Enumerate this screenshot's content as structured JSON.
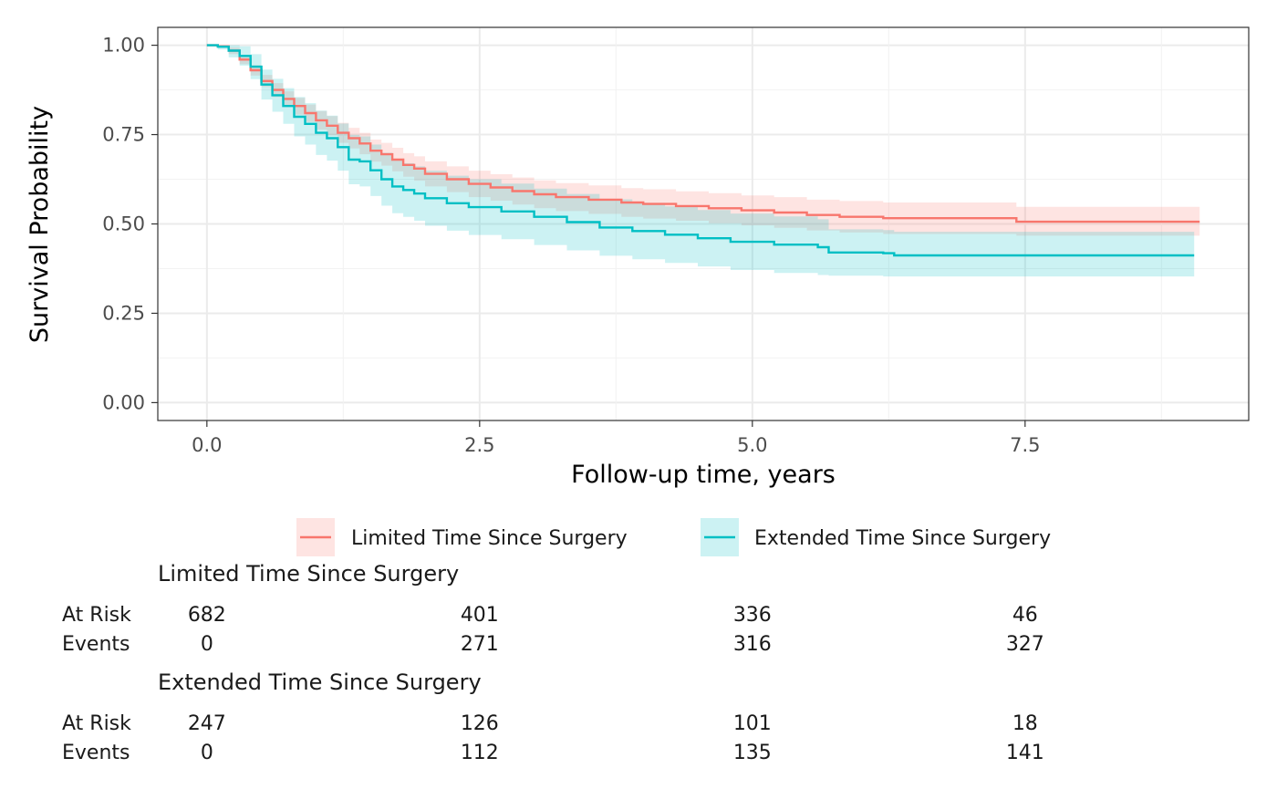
{
  "chart_data": {
    "type": "line",
    "subtype": "kaplan-meier",
    "xlabel": "Follow-up time, years",
    "ylabel": "Survival Probability",
    "xlim": [
      -0.45,
      9.55
    ],
    "ylim": [
      -0.05,
      1.05
    ],
    "x_ticks": [
      0.0,
      2.5,
      5.0,
      7.5
    ],
    "x_tick_labels": [
      "0.0",
      "2.5",
      "5.0",
      "7.5"
    ],
    "y_ticks": [
      0.0,
      0.25,
      0.5,
      0.75,
      1.0
    ],
    "y_tick_labels": [
      "0.00",
      "0.25",
      "0.50",
      "0.75",
      "1.00"
    ],
    "grid": true,
    "legend_position": "bottom",
    "series": [
      {
        "name": "Limited Time Since Surgery",
        "color": "#F8766D",
        "band_color": "#F8766D",
        "points": [
          [
            0,
            1.0
          ],
          [
            0.1,
            0.997
          ],
          [
            0.2,
            0.985
          ],
          [
            0.3,
            0.96
          ],
          [
            0.4,
            0.93
          ],
          [
            0.5,
            0.9
          ],
          [
            0.6,
            0.875
          ],
          [
            0.7,
            0.85
          ],
          [
            0.8,
            0.83
          ],
          [
            0.9,
            0.81
          ],
          [
            1.0,
            0.79
          ],
          [
            1.1,
            0.775
          ],
          [
            1.2,
            0.755
          ],
          [
            1.3,
            0.74
          ],
          [
            1.4,
            0.725
          ],
          [
            1.5,
            0.705
          ],
          [
            1.6,
            0.695
          ],
          [
            1.7,
            0.68
          ],
          [
            1.8,
            0.665
          ],
          [
            1.9,
            0.655
          ],
          [
            2.0,
            0.64
          ],
          [
            2.2,
            0.625
          ],
          [
            2.4,
            0.612
          ],
          [
            2.6,
            0.602
          ],
          [
            2.8,
            0.592
          ],
          [
            3.0,
            0.583
          ],
          [
            3.2,
            0.575
          ],
          [
            3.5,
            0.568
          ],
          [
            3.8,
            0.56
          ],
          [
            4.0,
            0.556
          ],
          [
            4.3,
            0.55
          ],
          [
            4.6,
            0.544
          ],
          [
            4.9,
            0.538
          ],
          [
            5.2,
            0.532
          ],
          [
            5.5,
            0.525
          ],
          [
            5.8,
            0.52
          ],
          [
            6.2,
            0.516
          ],
          [
            6.8,
            0.516
          ],
          [
            7.4,
            0.516
          ],
          [
            7.42,
            0.506
          ],
          [
            9.1,
            0.506
          ]
        ],
        "lower": [
          [
            0,
            1.0
          ],
          [
            0.1,
            0.993
          ],
          [
            0.2,
            0.975
          ],
          [
            0.3,
            0.947
          ],
          [
            0.4,
            0.915
          ],
          [
            0.5,
            0.883
          ],
          [
            0.6,
            0.855
          ],
          [
            0.7,
            0.828
          ],
          [
            0.8,
            0.806
          ],
          [
            0.9,
            0.785
          ],
          [
            1.0,
            0.764
          ],
          [
            1.1,
            0.748
          ],
          [
            1.2,
            0.727
          ],
          [
            1.3,
            0.711
          ],
          [
            1.4,
            0.695
          ],
          [
            1.5,
            0.674
          ],
          [
            1.6,
            0.663
          ],
          [
            1.7,
            0.647
          ],
          [
            1.8,
            0.632
          ],
          [
            1.9,
            0.621
          ],
          [
            2.0,
            0.605
          ],
          [
            2.2,
            0.589
          ],
          [
            2.4,
            0.575
          ],
          [
            2.6,
            0.565
          ],
          [
            2.8,
            0.554
          ],
          [
            3.0,
            0.544
          ],
          [
            3.2,
            0.536
          ],
          [
            3.5,
            0.528
          ],
          [
            3.8,
            0.52
          ],
          [
            4.0,
            0.515
          ],
          [
            4.3,
            0.509
          ],
          [
            4.6,
            0.502
          ],
          [
            4.9,
            0.496
          ],
          [
            5.2,
            0.489
          ],
          [
            5.5,
            0.482
          ],
          [
            5.8,
            0.476
          ],
          [
            6.2,
            0.472
          ],
          [
            6.8,
            0.472
          ],
          [
            7.4,
            0.472
          ],
          [
            7.42,
            0.467
          ],
          [
            9.1,
            0.467
          ]
        ],
        "upper": [
          [
            0,
            1.0
          ],
          [
            0.1,
            1.0
          ],
          [
            0.2,
            0.994
          ],
          [
            0.3,
            0.972
          ],
          [
            0.4,
            0.944
          ],
          [
            0.5,
            0.917
          ],
          [
            0.6,
            0.894
          ],
          [
            0.7,
            0.871
          ],
          [
            0.8,
            0.853
          ],
          [
            0.9,
            0.834
          ],
          [
            1.0,
            0.816
          ],
          [
            1.1,
            0.802
          ],
          [
            1.2,
            0.783
          ],
          [
            1.3,
            0.769
          ],
          [
            1.4,
            0.755
          ],
          [
            1.5,
            0.736
          ],
          [
            1.6,
            0.727
          ],
          [
            1.7,
            0.713
          ],
          [
            1.8,
            0.698
          ],
          [
            1.9,
            0.689
          ],
          [
            2.0,
            0.675
          ],
          [
            2.2,
            0.661
          ],
          [
            2.4,
            0.649
          ],
          [
            2.6,
            0.639
          ],
          [
            2.8,
            0.63
          ],
          [
            3.0,
            0.622
          ],
          [
            3.2,
            0.614
          ],
          [
            3.5,
            0.608
          ],
          [
            3.8,
            0.6
          ],
          [
            4.0,
            0.597
          ],
          [
            4.3,
            0.591
          ],
          [
            4.6,
            0.586
          ],
          [
            4.9,
            0.58
          ],
          [
            5.2,
            0.575
          ],
          [
            5.5,
            0.568
          ],
          [
            5.8,
            0.564
          ],
          [
            6.2,
            0.56
          ],
          [
            6.8,
            0.56
          ],
          [
            7.4,
            0.56
          ],
          [
            7.42,
            0.548
          ],
          [
            9.1,
            0.548
          ]
        ]
      },
      {
        "name": "Extended Time Since Surgery",
        "color": "#00BFC4",
        "band_color": "#00BFC4",
        "points": [
          [
            0,
            1.0
          ],
          [
            0.1,
            0.996
          ],
          [
            0.2,
            0.985
          ],
          [
            0.3,
            0.97
          ],
          [
            0.4,
            0.94
          ],
          [
            0.5,
            0.89
          ],
          [
            0.6,
            0.86
          ],
          [
            0.7,
            0.83
          ],
          [
            0.8,
            0.8
          ],
          [
            0.9,
            0.78
          ],
          [
            1.0,
            0.755
          ],
          [
            1.1,
            0.74
          ],
          [
            1.2,
            0.715
          ],
          [
            1.3,
            0.68
          ],
          [
            1.4,
            0.675
          ],
          [
            1.5,
            0.65
          ],
          [
            1.6,
            0.625
          ],
          [
            1.7,
            0.605
          ],
          [
            1.8,
            0.595
          ],
          [
            1.9,
            0.585
          ],
          [
            2.0,
            0.572
          ],
          [
            2.2,
            0.558
          ],
          [
            2.4,
            0.547
          ],
          [
            2.7,
            0.535
          ],
          [
            3.0,
            0.52
          ],
          [
            3.3,
            0.505
          ],
          [
            3.6,
            0.49
          ],
          [
            3.9,
            0.48
          ],
          [
            4.2,
            0.47
          ],
          [
            4.5,
            0.46
          ],
          [
            4.8,
            0.45
          ],
          [
            5.2,
            0.442
          ],
          [
            5.6,
            0.435
          ],
          [
            5.7,
            0.42
          ],
          [
            6.2,
            0.418
          ],
          [
            6.3,
            0.412
          ],
          [
            9.05,
            0.412
          ]
        ],
        "lower": [
          [
            0,
            1.0
          ],
          [
            0.1,
            0.988
          ],
          [
            0.2,
            0.966
          ],
          [
            0.3,
            0.943
          ],
          [
            0.4,
            0.905
          ],
          [
            0.5,
            0.848
          ],
          [
            0.6,
            0.814
          ],
          [
            0.7,
            0.78
          ],
          [
            0.8,
            0.745
          ],
          [
            0.9,
            0.722
          ],
          [
            1.0,
            0.693
          ],
          [
            1.1,
            0.677
          ],
          [
            1.2,
            0.649
          ],
          [
            1.3,
            0.611
          ],
          [
            1.4,
            0.605
          ],
          [
            1.5,
            0.578
          ],
          [
            1.6,
            0.551
          ],
          [
            1.7,
            0.53
          ],
          [
            1.8,
            0.52
          ],
          [
            1.9,
            0.509
          ],
          [
            2.0,
            0.495
          ],
          [
            2.2,
            0.481
          ],
          [
            2.4,
            0.469
          ],
          [
            2.7,
            0.457
          ],
          [
            3.0,
            0.441
          ],
          [
            3.3,
            0.426
          ],
          [
            3.6,
            0.411
          ],
          [
            3.9,
            0.401
          ],
          [
            4.2,
            0.391
          ],
          [
            4.5,
            0.381
          ],
          [
            4.8,
            0.371
          ],
          [
            5.2,
            0.363
          ],
          [
            5.6,
            0.357
          ],
          [
            5.7,
            0.355
          ],
          [
            6.2,
            0.353
          ],
          [
            6.3,
            0.353
          ],
          [
            9.05,
            0.353
          ]
        ],
        "upper": [
          [
            0,
            1.0
          ],
          [
            0.1,
            1.0
          ],
          [
            0.2,
            1.0
          ],
          [
            0.3,
            0.997
          ],
          [
            0.4,
            0.975
          ],
          [
            0.5,
            0.932
          ],
          [
            0.6,
            0.906
          ],
          [
            0.7,
            0.88
          ],
          [
            0.8,
            0.855
          ],
          [
            0.9,
            0.838
          ],
          [
            1.0,
            0.817
          ],
          [
            1.1,
            0.803
          ],
          [
            1.2,
            0.781
          ],
          [
            1.3,
            0.749
          ],
          [
            1.4,
            0.745
          ],
          [
            1.5,
            0.722
          ],
          [
            1.6,
            0.699
          ],
          [
            1.7,
            0.68
          ],
          [
            1.8,
            0.67
          ],
          [
            1.9,
            0.661
          ],
          [
            2.0,
            0.649
          ],
          [
            2.2,
            0.635
          ],
          [
            2.4,
            0.625
          ],
          [
            2.7,
            0.613
          ],
          [
            3.0,
            0.599
          ],
          [
            3.3,
            0.584
          ],
          [
            3.6,
            0.569
          ],
          [
            3.9,
            0.559
          ],
          [
            4.2,
            0.549
          ],
          [
            4.5,
            0.539
          ],
          [
            4.8,
            0.529
          ],
          [
            5.2,
            0.521
          ],
          [
            5.6,
            0.513
          ],
          [
            5.7,
            0.485
          ],
          [
            6.2,
            0.483
          ],
          [
            6.3,
            0.478
          ],
          [
            9.05,
            0.478
          ]
        ]
      }
    ],
    "risk_table": {
      "row_labels": [
        "At Risk",
        "Events"
      ],
      "times": [
        0.0,
        2.5,
        5.0,
        7.5
      ],
      "groups": [
        {
          "name": "Limited Time Since Surgery",
          "at_risk": [
            "682",
            "401",
            "336",
            "46"
          ],
          "events": [
            "0",
            "271",
            "316",
            "327"
          ]
        },
        {
          "name": "Extended Time Since Surgery",
          "at_risk": [
            "247",
            "126",
            "101",
            "18"
          ],
          "events": [
            "0",
            "112",
            "135",
            "141"
          ]
        }
      ]
    }
  }
}
